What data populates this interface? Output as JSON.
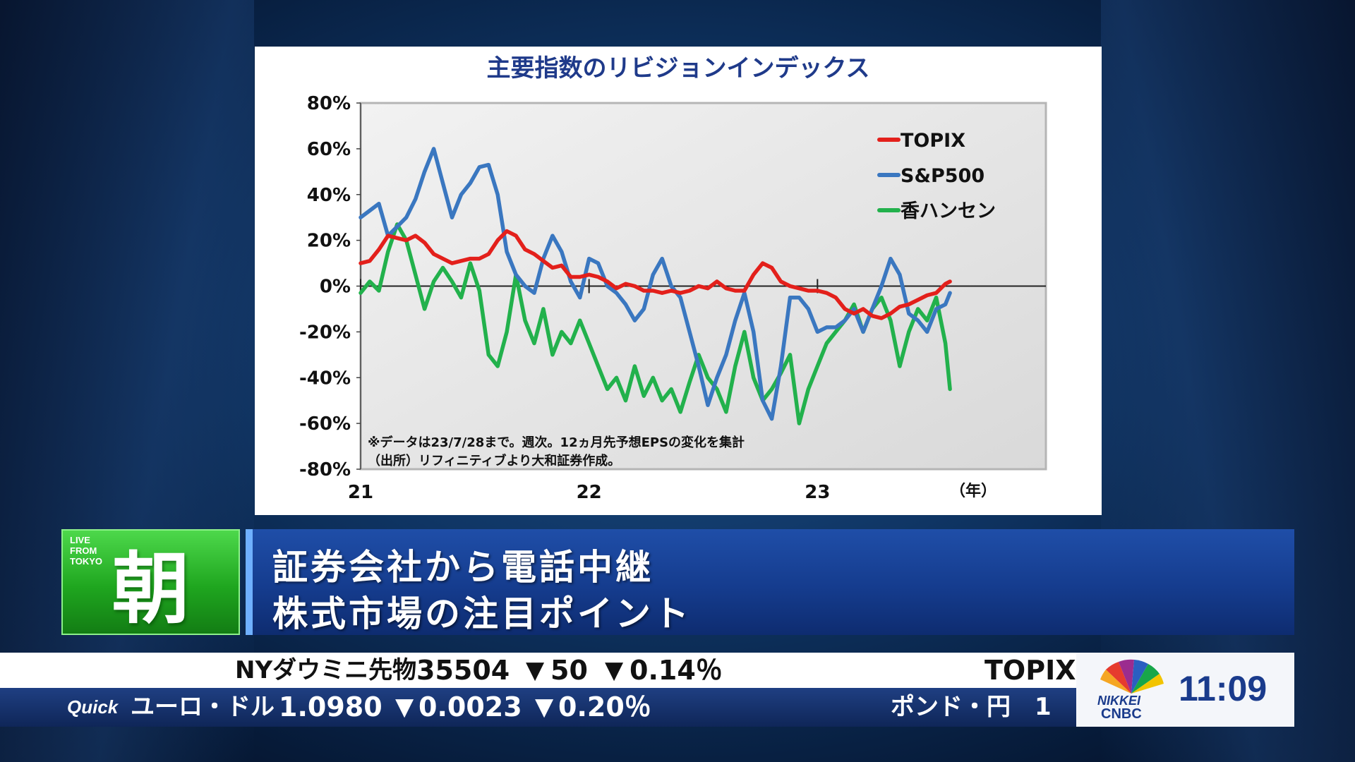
{
  "chart_data": {
    "type": "line",
    "title": "主要指数のリビジョンインデックス",
    "yticks": [
      "80%",
      "60%",
      "40%",
      "20%",
      "0%",
      "-20%",
      "-40%",
      "-60%",
      "-80%"
    ],
    "ylim": [
      -80,
      80
    ],
    "xticks": [
      "21",
      "22",
      "23"
    ],
    "x_unit_label": "（年）",
    "xlim": [
      2021.0,
      2024.0
    ],
    "note_lines": [
      "※データは23/7/28まで。週次。12ヵ月先予想EPSの変化を集計",
      "（出所）リフィニティブより大和証券作成。"
    ],
    "legend_position": "top-right",
    "grid": false,
    "series": [
      {
        "name": "TOPIX",
        "color": "#e3201b",
        "x": [
          2021.0,
          2021.04,
          2021.08,
          2021.12,
          2021.16,
          2021.2,
          2021.24,
          2021.28,
          2021.32,
          2021.36,
          2021.4,
          2021.44,
          2021.48,
          2021.52,
          2021.56,
          2021.6,
          2021.64,
          2021.68,
          2021.72,
          2021.76,
          2021.8,
          2021.84,
          2021.88,
          2021.92,
          2021.96,
          2022.0,
          2022.04,
          2022.08,
          2022.12,
          2022.16,
          2022.2,
          2022.24,
          2022.28,
          2022.32,
          2022.36,
          2022.4,
          2022.44,
          2022.48,
          2022.52,
          2022.56,
          2022.6,
          2022.64,
          2022.68,
          2022.72,
          2022.76,
          2022.8,
          2022.84,
          2022.88,
          2022.92,
          2022.96,
          2023.0,
          2023.04,
          2023.08,
          2023.12,
          2023.16,
          2023.2,
          2023.24,
          2023.28,
          2023.32,
          2023.36,
          2023.4,
          2023.44,
          2023.48,
          2023.52,
          2023.56,
          2023.58
        ],
        "y": [
          10,
          11,
          16,
          22,
          21,
          20,
          22,
          19,
          14,
          12,
          10,
          11,
          12,
          12,
          14,
          20,
          24,
          22,
          16,
          14,
          11,
          8,
          9,
          4,
          4,
          5,
          4,
          2,
          -1,
          1,
          0,
          -2,
          -2,
          -3,
          -2,
          -3,
          -2,
          0,
          -1,
          2,
          -1,
          -2,
          -2,
          5,
          10,
          8,
          2,
          0,
          -1,
          -2,
          -2,
          -3,
          -5,
          -10,
          -12,
          -10,
          -13,
          -14,
          -12,
          -9,
          -8,
          -6,
          -4,
          -3,
          1,
          2
        ]
      },
      {
        "name": "S&P500",
        "color": "#3a77c0",
        "x": [
          2021.0,
          2021.04,
          2021.08,
          2021.12,
          2021.16,
          2021.2,
          2021.24,
          2021.28,
          2021.32,
          2021.36,
          2021.4,
          2021.44,
          2021.48,
          2021.52,
          2021.56,
          2021.6,
          2021.64,
          2021.68,
          2021.72,
          2021.76,
          2021.8,
          2021.84,
          2021.88,
          2021.92,
          2021.96,
          2022.0,
          2022.04,
          2022.08,
          2022.12,
          2022.16,
          2022.2,
          2022.24,
          2022.28,
          2022.32,
          2022.36,
          2022.4,
          2022.44,
          2022.48,
          2022.52,
          2022.56,
          2022.6,
          2022.64,
          2022.68,
          2022.72,
          2022.76,
          2022.8,
          2022.84,
          2022.88,
          2022.92,
          2022.96,
          2023.0,
          2023.04,
          2023.08,
          2023.12,
          2023.16,
          2023.2,
          2023.24,
          2023.28,
          2023.32,
          2023.36,
          2023.4,
          2023.44,
          2023.48,
          2023.52,
          2023.56,
          2023.58
        ],
        "y": [
          30,
          33,
          36,
          22,
          26,
          30,
          38,
          50,
          60,
          45,
          30,
          40,
          45,
          52,
          53,
          40,
          15,
          5,
          0,
          -3,
          12,
          22,
          15,
          2,
          -5,
          12,
          10,
          0,
          -3,
          -8,
          -15,
          -10,
          5,
          12,
          0,
          -5,
          -20,
          -35,
          -52,
          -40,
          -30,
          -15,
          -3,
          -20,
          -50,
          -58,
          -35,
          -5,
          -5,
          -10,
          -20,
          -18,
          -18,
          -15,
          -10,
          -20,
          -10,
          0,
          12,
          5,
          -12,
          -15,
          -20,
          -10,
          -8,
          -3
        ]
      },
      {
        "name": "香ハンセン",
        "color": "#22b14c",
        "x": [
          2021.0,
          2021.04,
          2021.08,
          2021.12,
          2021.16,
          2021.2,
          2021.24,
          2021.28,
          2021.32,
          2021.36,
          2021.4,
          2021.44,
          2021.48,
          2021.52,
          2021.56,
          2021.6,
          2021.64,
          2021.68,
          2021.72,
          2021.76,
          2021.8,
          2021.84,
          2021.88,
          2021.92,
          2021.96,
          2022.0,
          2022.04,
          2022.08,
          2022.12,
          2022.16,
          2022.2,
          2022.24,
          2022.28,
          2022.32,
          2022.36,
          2022.4,
          2022.44,
          2022.48,
          2022.52,
          2022.56,
          2022.6,
          2022.64,
          2022.68,
          2022.72,
          2022.76,
          2022.8,
          2022.84,
          2022.88,
          2022.92,
          2022.96,
          2023.0,
          2023.04,
          2023.08,
          2023.12,
          2023.16,
          2023.2,
          2023.24,
          2023.28,
          2023.32,
          2023.36,
          2023.4,
          2023.44,
          2023.48,
          2023.52,
          2023.56,
          2023.58
        ],
        "y": [
          -3,
          2,
          -2,
          15,
          27,
          20,
          5,
          -10,
          2,
          8,
          2,
          -5,
          10,
          -2,
          -30,
          -35,
          -20,
          5,
          -15,
          -25,
          -10,
          -30,
          -20,
          -25,
          -15,
          -25,
          -35,
          -45,
          -40,
          -50,
          -35,
          -48,
          -40,
          -50,
          -45,
          -55,
          -42,
          -30,
          -40,
          -45,
          -55,
          -35,
          -20,
          -40,
          -50,
          -45,
          -38,
          -30,
          -60,
          -45,
          -35,
          -25,
          -20,
          -15,
          -8,
          -20,
          -10,
          -5,
          -15,
          -35,
          -20,
          -10,
          -15,
          -5,
          -25,
          -45
        ]
      }
    ]
  },
  "caption": {
    "badge_text_lines": [
      "LIVE",
      "FROM",
      "TOKYO"
    ],
    "badge_kanji": "朝",
    "line1": "証券会社から電話中継",
    "line2": "株式市場の注目ポイント"
  },
  "ticker_top": {
    "name": "NYダウミニ先物",
    "value": "35504",
    "change_arrow": "▼",
    "change": "50",
    "pct_arrow": "▼",
    "pct": "0.14％",
    "next": "TOPIX"
  },
  "ticker_bottom": {
    "source": "Quick",
    "name": "ユーロ・ドル",
    "value": "1.0980",
    "change_arrow": "▼",
    "change": "0.0023",
    "pct_arrow": "▼",
    "pct": "0.20％",
    "next": "ポンド・円　1"
  },
  "logo": {
    "line1": "NIKKEI",
    "line2": "CNBC",
    "clock": "11:09"
  }
}
